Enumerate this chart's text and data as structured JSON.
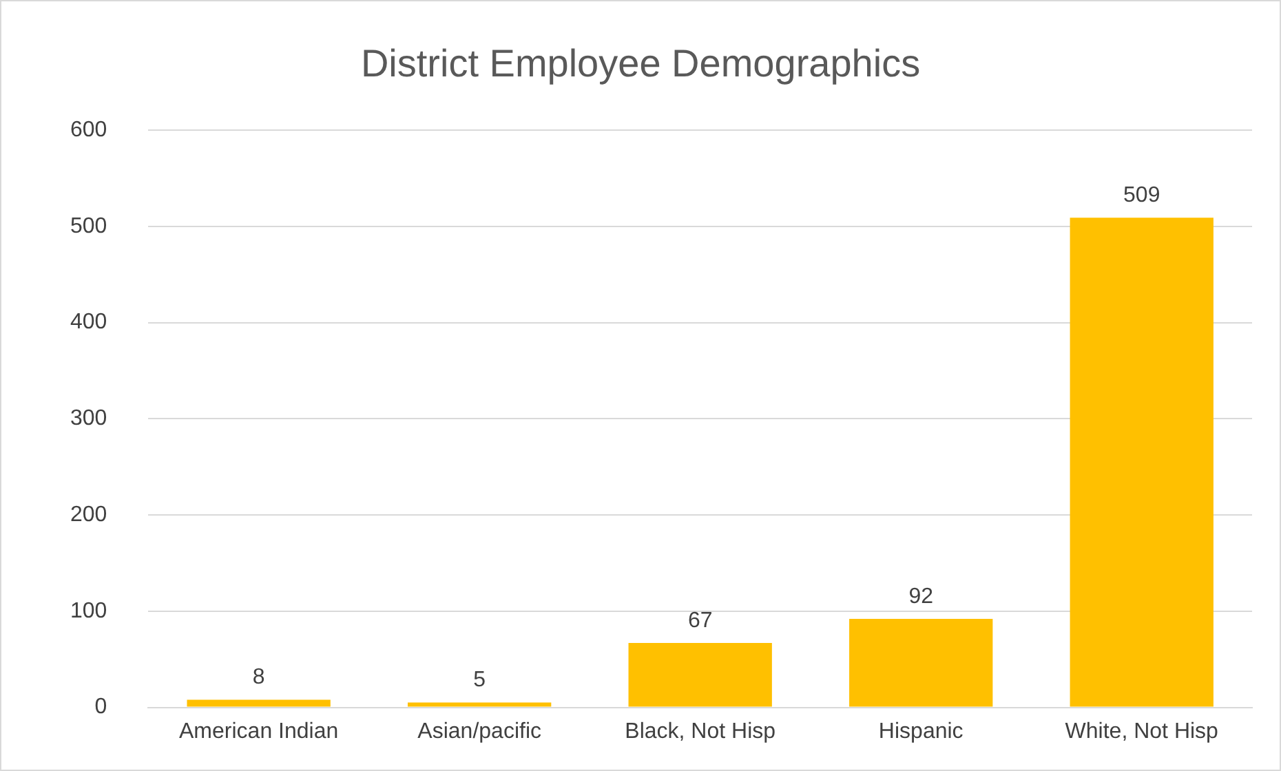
{
  "chart_data": {
    "type": "bar",
    "title": "District Employee Demographics",
    "categories": [
      "American Indian",
      "Asian/pacific",
      "Black, Not Hisp",
      "Hispanic",
      "White, Not Hisp"
    ],
    "values": [
      8,
      5,
      67,
      92,
      509
    ],
    "color": "#ffc000",
    "ylim": [
      0,
      600
    ],
    "yticks": [
      0,
      100,
      200,
      300,
      400,
      500,
      600
    ],
    "grid": "y",
    "data_labels": true
  }
}
